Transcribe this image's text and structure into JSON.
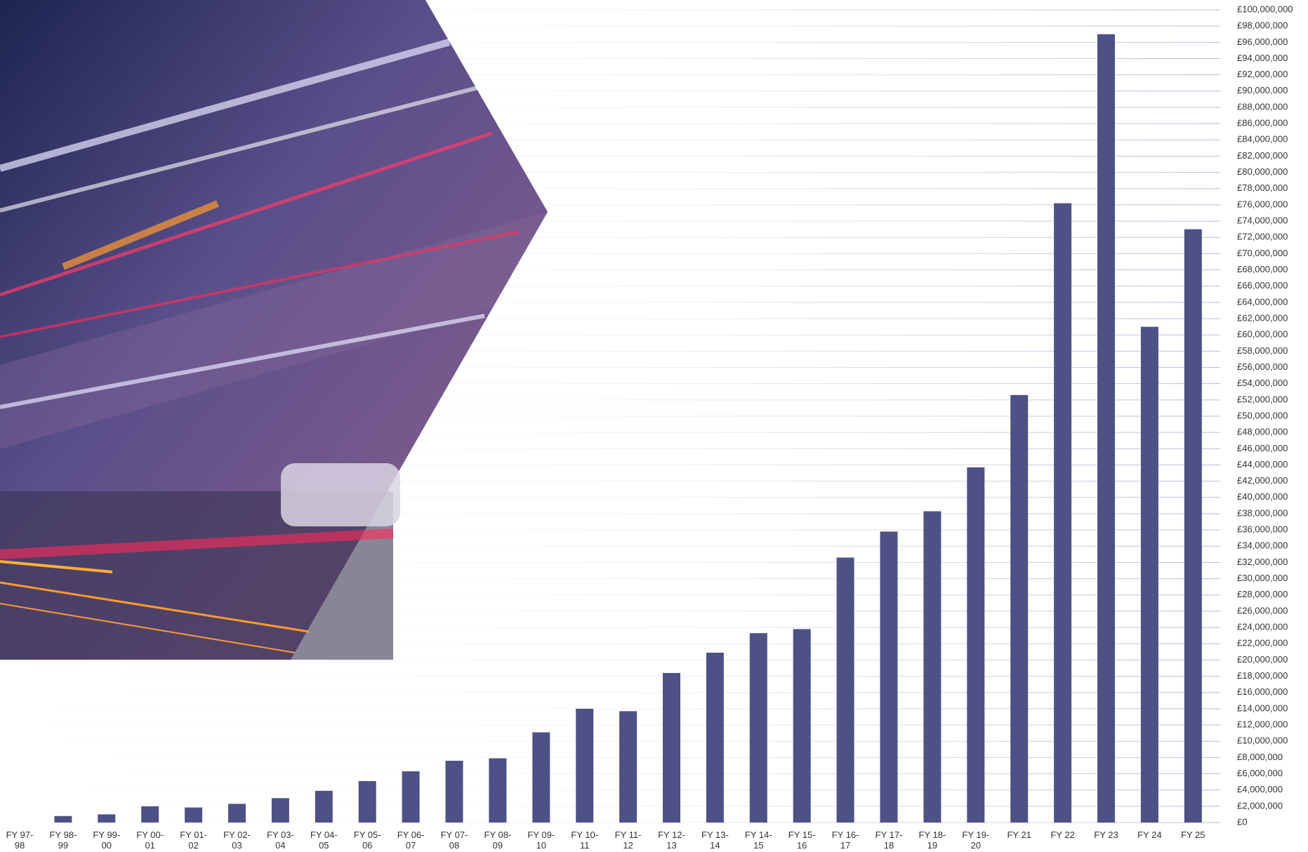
{
  "chart_data": {
    "type": "bar",
    "categories": [
      "FY 97-98",
      "FY 98-99",
      "FY 99-00",
      "FY 00-01",
      "FY 01-02",
      "FY 02-03",
      "FY 03-04",
      "FY 04-05",
      "FY 05-06",
      "FY 06-07",
      "FY 07-08",
      "FY 08-09",
      "FY 09-10",
      "FY 10-11",
      "FY 11-12",
      "FY 12-13",
      "FY 13-14",
      "FY 14-15",
      "FY 15-16",
      "FY 16-17",
      "FY 17-18",
      "FY 18-19",
      "FY 19-20",
      "FY 21",
      "FY 22",
      "FY 23",
      "FY 24",
      "FY 25"
    ],
    "values": [
      0,
      800000,
      1000000,
      2000000,
      1850000,
      2300000,
      3000000,
      3900000,
      5100000,
      6300000,
      7600000,
      7900000,
      11100000,
      14000000,
      13700000,
      18400000,
      20900000,
      23300000,
      23800000,
      32600000,
      35800000,
      38300000,
      43700000,
      52600000,
      76200000,
      97000000,
      61000000,
      73000000
    ],
    "color": "#4e5185",
    "ylim": [
      0,
      100000000
    ],
    "yticks": [
      {
        "value": 0,
        "label": "£0"
      },
      {
        "value": 2000000,
        "label": "£2,000,000"
      },
      {
        "value": 4000000,
        "label": "£4,000,000"
      },
      {
        "value": 6000000,
        "label": "£6,000,000"
      },
      {
        "value": 8000000,
        "label": "£8,000,000"
      },
      {
        "value": 10000000,
        "label": "£10,000,000"
      },
      {
        "value": 12000000,
        "label": "£12,000,000"
      },
      {
        "value": 14000000,
        "label": "£14,000,000"
      },
      {
        "value": 16000000,
        "label": "£16,000,000"
      },
      {
        "value": 18000000,
        "label": "£18,000,000"
      },
      {
        "value": 20000000,
        "label": "£20,000,000"
      },
      {
        "value": 22000000,
        "label": "£22,000,000"
      },
      {
        "value": 24000000,
        "label": "£24,000,000"
      },
      {
        "value": 26000000,
        "label": "£26,000,000"
      },
      {
        "value": 28000000,
        "label": "£28,000,000"
      },
      {
        "value": 30000000,
        "label": "£30,000,000"
      },
      {
        "value": 32000000,
        "label": "£32,000,000"
      },
      {
        "value": 34000000,
        "label": "£34,000,000"
      },
      {
        "value": 36000000,
        "label": "£36,000,000"
      },
      {
        "value": 38000000,
        "label": "£38,000,000"
      },
      {
        "value": 40000000,
        "label": "£40,000,000"
      },
      {
        "value": 42000000,
        "label": "£42,000,000"
      },
      {
        "value": 44000000,
        "label": "£44,000,000"
      },
      {
        "value": 46000000,
        "label": "£46,000,000"
      },
      {
        "value": 48000000,
        "label": "£48,000,000"
      },
      {
        "value": 50000000,
        "label": "£50,000,000"
      },
      {
        "value": 52000000,
        "label": "£52,000,000"
      },
      {
        "value": 54000000,
        "label": "£54,000,000"
      },
      {
        "value": 56000000,
        "label": "£56,000,000"
      },
      {
        "value": 58000000,
        "label": "£58,000,000"
      },
      {
        "value": 60000000,
        "label": "£60,000,000"
      },
      {
        "value": 62000000,
        "label": "£62,000,000"
      },
      {
        "value": 64000000,
        "label": "£64,000,000"
      },
      {
        "value": 66000000,
        "label": "£66,000,000"
      },
      {
        "value": 68000000,
        "label": "£68,000,000"
      },
      {
        "value": 70000000,
        "label": "£70,000,000"
      },
      {
        "value": 72000000,
        "label": "£72,000,000"
      },
      {
        "value": 74000000,
        "label": "£74,000,000"
      },
      {
        "value": 76000000,
        "label": "£76,000,000"
      },
      {
        "value": 78000000,
        "label": "£78,000,000"
      },
      {
        "value": 80000000,
        "label": "£80,000,000"
      },
      {
        "value": 82000000,
        "label": "£82,000,000"
      },
      {
        "value": 84000000,
        "label": "£84,000,000"
      },
      {
        "value": 86000000,
        "label": "£86,000,000"
      },
      {
        "value": 88000000,
        "label": "£88,000,000"
      },
      {
        "value": 90000000,
        "label": "£90,000,000"
      },
      {
        "value": 92000000,
        "label": "£92,000,000"
      },
      {
        "value": 94000000,
        "label": "£94,000,000"
      },
      {
        "value": 96000000,
        "label": "£96,000,000"
      },
      {
        "value": 98000000,
        "label": "£98,000,000"
      },
      {
        "value": 100000000,
        "label": "£100,000,000"
      }
    ],
    "grid": true
  }
}
